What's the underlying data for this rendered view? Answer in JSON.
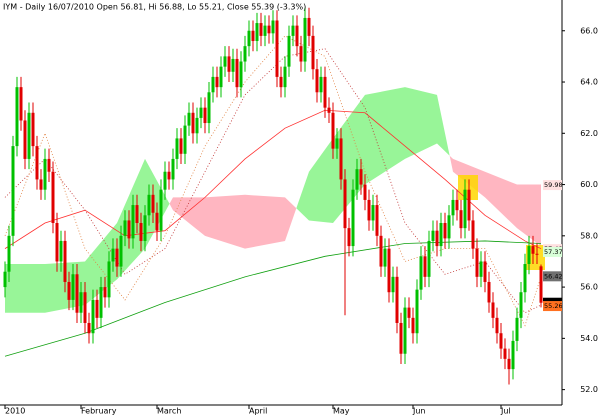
{
  "chart_data": {
    "type": "candlestick",
    "title": "IYM - Daily 16/07/2010 Open 56.81, Hi 56.88, Lo 55.21, Close 55.39 (-3.3%)",
    "up_color": "#00c000",
    "down_color": "#e00000",
    "xlim": [
      -1.25,
      139.25
    ],
    "ylim": [
      51.4,
      67.2
    ],
    "yticks": [
      {
        "value": 52,
        "label": "52.0"
      },
      {
        "value": 54,
        "label": "54.0"
      },
      {
        "value": 56,
        "label": "56.0"
      },
      {
        "value": 58,
        "label": "58.0"
      },
      {
        "value": 60,
        "label": "60.0"
      },
      {
        "value": 62,
        "label": "62.0"
      },
      {
        "value": 64,
        "label": "64.0"
      },
      {
        "value": 66,
        "label": "66.0"
      }
    ],
    "xticks": [
      {
        "value": 0,
        "label": "2010"
      },
      {
        "value": 19,
        "label": "February"
      },
      {
        "value": 38,
        "label": "March"
      },
      {
        "value": 61,
        "label": "April"
      },
      {
        "value": 82,
        "label": "May"
      },
      {
        "value": 102,
        "label": "Jun"
      },
      {
        "value": 124,
        "label": "Jul"
      }
    ],
    "open": [
      56.0,
      56.6,
      58.0,
      61.5,
      63.8,
      62.5,
      61.0,
      62.8,
      61.5,
      60.2,
      59.8,
      61.0,
      60.5,
      58.5,
      57.0,
      57.8,
      56.2,
      55.5,
      56.5,
      55.0,
      55.8,
      54.6,
      54.2,
      55.5,
      54.8,
      56.0,
      55.6,
      57.0,
      57.5,
      56.8,
      58.0,
      58.6,
      57.9,
      59.2,
      58.5,
      57.8,
      58.8,
      59.6,
      58.9,
      58.2,
      59.8,
      60.5,
      60.2,
      61.0,
      61.8,
      61.2,
      62.3,
      62.8,
      62.0,
      62.6,
      63.0,
      62.4,
      63.6,
      64.2,
      63.8,
      64.6,
      65.0,
      64.4,
      64.9,
      63.8,
      64.8,
      65.4,
      66.0,
      65.6,
      66.3,
      65.8,
      66.2,
      65.9,
      66.4,
      64.2,
      63.8,
      64.6,
      65.8,
      66.2,
      65.4,
      64.8,
      66.5,
      65.8,
      64.5,
      63.6,
      64.2,
      63.0,
      62.8,
      61.4,
      61.8,
      60.2,
      58.3,
      57.6,
      59.8,
      60.6,
      60.0,
      59.4,
      58.6,
      59.2,
      58.0,
      56.8,
      57.5,
      55.8,
      56.4,
      54.6,
      53.4,
      55.2,
      54.8,
      54.2,
      55.9,
      57.2,
      56.4,
      57.8,
      58.2,
      57.6,
      58.5,
      57.9,
      58.8,
      59.4,
      59.0,
      58.3,
      59.8,
      58.6,
      57.5,
      56.4,
      57.0,
      56.2,
      55.4,
      54.8,
      54.2,
      53.6,
      53.2,
      52.8,
      53.9,
      54.8,
      55.8,
      56.9,
      57.6,
      57.3,
      56.81
    ],
    "high": [
      57.0,
      58.4,
      61.9,
      64.2,
      64.2,
      62.9,
      63.2,
      63.2,
      61.9,
      60.6,
      61.4,
      61.4,
      60.9,
      58.9,
      58.2,
      58.2,
      56.6,
      56.9,
      56.9,
      56.2,
      56.2,
      55.0,
      55.9,
      55.9,
      56.4,
      56.4,
      57.4,
      57.9,
      57.9,
      58.4,
      59.0,
      59.0,
      59.6,
      59.6,
      58.9,
      59.2,
      60.0,
      60.0,
      59.3,
      60.2,
      60.9,
      60.9,
      61.4,
      62.2,
      62.2,
      62.7,
      63.2,
      63.2,
      63.0,
      63.4,
      63.4,
      64.0,
      64.6,
      64.6,
      65.0,
      65.4,
      65.4,
      65.3,
      65.3,
      65.2,
      65.8,
      66.4,
      66.4,
      66.7,
      66.7,
      66.6,
      66.6,
      66.8,
      66.8,
      64.6,
      65.0,
      66.2,
      66.6,
      66.6,
      65.8,
      66.9,
      66.9,
      66.2,
      64.9,
      64.6,
      64.6,
      63.4,
      63.2,
      62.2,
      62.2,
      60.6,
      58.7,
      60.2,
      61.0,
      61.0,
      60.4,
      59.8,
      59.6,
      59.6,
      58.4,
      57.9,
      57.9,
      56.8,
      56.8,
      55.0,
      55.6,
      55.6,
      55.2,
      56.3,
      57.6,
      57.6,
      58.2,
      58.6,
      58.6,
      58.9,
      58.9,
      59.2,
      59.8,
      59.8,
      59.4,
      60.2,
      60.2,
      59.0,
      57.9,
      57.4,
      57.4,
      56.6,
      55.8,
      55.2,
      54.6,
      54.0,
      53.6,
      54.3,
      55.2,
      56.2,
      57.3,
      58.0,
      58.0,
      57.7,
      56.88
    ],
    "low": [
      55.6,
      56.2,
      57.6,
      61.1,
      62.1,
      60.6,
      60.6,
      61.1,
      59.8,
      59.4,
      59.4,
      60.1,
      58.1,
      56.6,
      56.6,
      55.8,
      55.1,
      55.1,
      54.6,
      54.6,
      54.2,
      53.8,
      53.8,
      54.4,
      54.4,
      55.2,
      55.2,
      56.6,
      56.4,
      56.4,
      57.6,
      57.5,
      57.5,
      58.1,
      57.4,
      57.4,
      58.4,
      58.5,
      57.8,
      57.8,
      59.4,
      59.8,
      59.8,
      60.6,
      60.8,
      60.8,
      61.9,
      61.6,
      61.6,
      62.2,
      62.0,
      62.0,
      63.2,
      63.4,
      63.4,
      64.2,
      64.0,
      64.0,
      63.4,
      63.4,
      64.4,
      65.0,
      65.2,
      65.2,
      65.4,
      65.4,
      65.5,
      65.5,
      63.8,
      63.4,
      63.4,
      64.2,
      65.4,
      65.0,
      64.4,
      64.4,
      65.4,
      64.1,
      63.2,
      63.2,
      62.6,
      62.4,
      61.0,
      61.0,
      59.8,
      54.9,
      57.2,
      57.2,
      59.4,
      59.6,
      59.0,
      58.2,
      58.2,
      57.6,
      56.4,
      56.4,
      55.4,
      55.4,
      54.2,
      53.0,
      53.0,
      54.4,
      53.8,
      53.8,
      55.5,
      56.0,
      56.0,
      57.4,
      57.2,
      57.2,
      57.5,
      57.5,
      58.4,
      58.6,
      57.9,
      57.9,
      58.2,
      57.1,
      56.0,
      56.0,
      55.8,
      55.0,
      54.4,
      53.8,
      53.2,
      52.8,
      52.2,
      52.4,
      53.5,
      54.4,
      55.4,
      56.5,
      56.9,
      56.9,
      55.21
    ],
    "close": [
      56.6,
      58.0,
      61.5,
      63.8,
      62.5,
      61.0,
      62.8,
      61.5,
      60.2,
      59.8,
      61.0,
      60.5,
      58.5,
      57.0,
      57.8,
      56.2,
      55.5,
      56.5,
      55.0,
      55.8,
      54.6,
      54.2,
      55.5,
      54.8,
      56.0,
      55.6,
      57.0,
      57.5,
      56.8,
      58.0,
      58.6,
      57.9,
      59.2,
      58.5,
      57.8,
      58.8,
      59.6,
      58.9,
      58.2,
      59.8,
      60.5,
      60.2,
      61.0,
      61.8,
      61.2,
      62.3,
      62.8,
      62.0,
      62.6,
      63.0,
      62.4,
      63.6,
      64.2,
      63.8,
      64.6,
      65.0,
      64.4,
      64.9,
      63.8,
      64.8,
      65.4,
      66.0,
      65.6,
      66.3,
      65.8,
      66.2,
      65.9,
      66.4,
      64.2,
      63.8,
      64.6,
      65.8,
      66.2,
      65.4,
      64.8,
      66.5,
      65.8,
      64.5,
      63.6,
      64.2,
      63.0,
      62.8,
      61.4,
      61.8,
      60.2,
      58.3,
      57.6,
      59.8,
      60.6,
      60.0,
      59.4,
      58.6,
      59.2,
      58.0,
      56.8,
      57.5,
      55.8,
      56.4,
      54.6,
      53.4,
      55.2,
      54.8,
      54.2,
      55.9,
      57.2,
      56.4,
      57.8,
      58.2,
      57.6,
      58.5,
      57.9,
      58.8,
      59.4,
      59.0,
      58.3,
      59.8,
      58.6,
      57.5,
      56.4,
      57.0,
      56.2,
      55.4,
      54.8,
      54.2,
      53.6,
      53.2,
      52.8,
      53.9,
      54.8,
      55.8,
      56.9,
      57.6,
      57.3,
      57.28,
      55.39
    ],
    "cloud": {
      "up_color": "#98f598",
      "down_color": "#ffb6c1",
      "x": [
        0,
        10,
        20,
        28,
        35,
        42,
        50,
        60,
        70,
        76,
        82,
        90,
        100,
        108,
        112,
        120,
        128,
        134
      ],
      "span_a": [
        56.9,
        56.9,
        57.0,
        58.5,
        61.0,
        59.0,
        58.0,
        57.5,
        57.8,
        60.5,
        61.8,
        63.5,
        63.8,
        63.5,
        60.5,
        59.5,
        58.3,
        57.6
      ],
      "span_b": [
        55.0,
        55.0,
        55.3,
        56.3,
        57.5,
        59.5,
        59.5,
        59.6,
        59.5,
        58.6,
        58.5,
        60.0,
        61.0,
        61.6,
        61.0,
        60.5,
        60.0,
        60.0
      ]
    },
    "lines": [
      {
        "color": "#ff3030",
        "dash": false,
        "x": [
          0,
          10,
          20,
          30,
          40,
          50,
          60,
          70,
          80,
          90,
          100,
          110,
          120,
          130,
          134
        ],
        "values": [
          57.5,
          58.5,
          59.0,
          58.0,
          58.2,
          59.5,
          61.0,
          62.2,
          62.9,
          62.8,
          61.5,
          60.2,
          58.8,
          57.8,
          57.5
        ]
      },
      {
        "color": "#10a010",
        "dash": false,
        "x": [
          0,
          20,
          40,
          60,
          80,
          100,
          120,
          134
        ],
        "values": [
          53.3,
          54.2,
          55.4,
          56.4,
          57.2,
          57.7,
          57.8,
          57.7
        ]
      },
      {
        "color": "#c03030",
        "dash": true,
        "x": [
          0,
          10,
          20,
          30,
          40,
          50,
          60,
          70,
          80,
          90,
          100,
          110,
          120,
          130,
          134
        ],
        "values": [
          59.5,
          61.0,
          59.0,
          56.5,
          57.5,
          60.5,
          63.5,
          65.0,
          65.3,
          63.0,
          58.5,
          56.5,
          57.0,
          55.0,
          55.3
        ]
      },
      {
        "color": "#e08040",
        "dash": true,
        "x": [
          0,
          10,
          20,
          30,
          40,
          50,
          60,
          70,
          80,
          90,
          100,
          110,
          120,
          130,
          134
        ],
        "values": [
          58.0,
          62.0,
          57.5,
          55.5,
          58.0,
          61.5,
          64.0,
          65.8,
          65.0,
          60.5,
          57.0,
          57.5,
          57.5,
          54.5,
          56.4
        ]
      }
    ],
    "price_labels": [
      {
        "value": 59.98,
        "text_color": "#e00000",
        "box_color": "#ffe0e0"
      },
      {
        "value": 57.48,
        "text_color": "#e00000",
        "box_color": "#ffe0e0"
      },
      {
        "value": 57.37,
        "text_color": "#006000",
        "box_color": "#d8ffd8"
      },
      {
        "value": 56.42,
        "text_color": "#ffffff",
        "box_color": "#707070"
      },
      {
        "value": 55.39,
        "text_color": "#ffffff",
        "box_color": "#000000"
      },
      {
        "value": 55.26,
        "text_color": "#ffffff",
        "box_color": "#ff7020"
      }
    ]
  }
}
